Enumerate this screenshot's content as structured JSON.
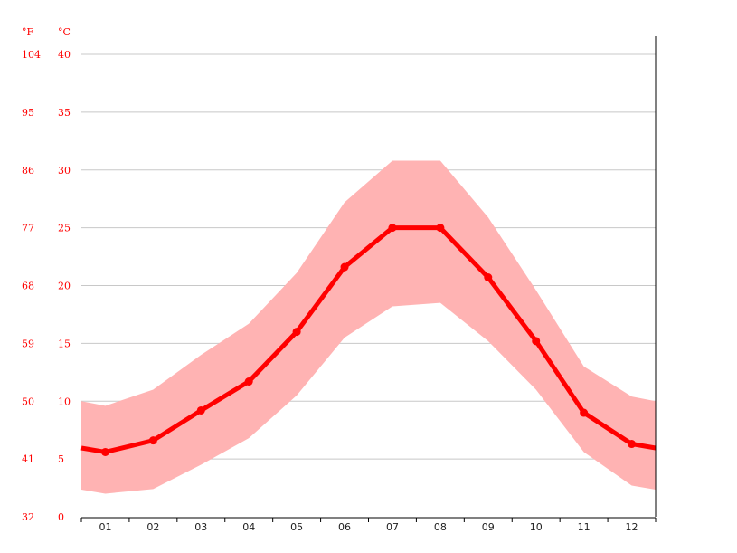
{
  "chart_data": {
    "type": "line",
    "title": "",
    "left_unit_label": "°F",
    "right_unit_label": "°C",
    "categories": [
      "01",
      "02",
      "03",
      "04",
      "05",
      "06",
      "07",
      "08",
      "09",
      "10",
      "11",
      "12"
    ],
    "ylim": [
      0,
      40
    ],
    "y_ticks_c": [
      "0",
      "5",
      "10",
      "15",
      "20",
      "25",
      "30",
      "35",
      "40"
    ],
    "y_ticks_f": [
      "32",
      "41",
      "50",
      "59",
      "68",
      "77",
      "86",
      "95",
      "104"
    ],
    "grid": true,
    "series": [
      {
        "role": "average",
        "color": "#ff0000",
        "values": [
          5.6,
          6.6,
          9.2,
          11.7,
          16.0,
          21.6,
          25.0,
          25.0,
          20.7,
          15.2,
          9.0,
          6.3
        ]
      },
      {
        "role": "range-max",
        "color": "#ffb3b3",
        "values": [
          9.6,
          11.0,
          14.0,
          16.7,
          21.1,
          27.2,
          30.8,
          30.8,
          25.9,
          19.6,
          13.0,
          10.4
        ]
      },
      {
        "role": "range-min",
        "color": "#ffb3b3",
        "values": [
          2.0,
          2.4,
          4.5,
          6.8,
          10.5,
          15.5,
          18.2,
          18.5,
          15.2,
          11.0,
          5.6,
          2.7
        ]
      }
    ]
  }
}
